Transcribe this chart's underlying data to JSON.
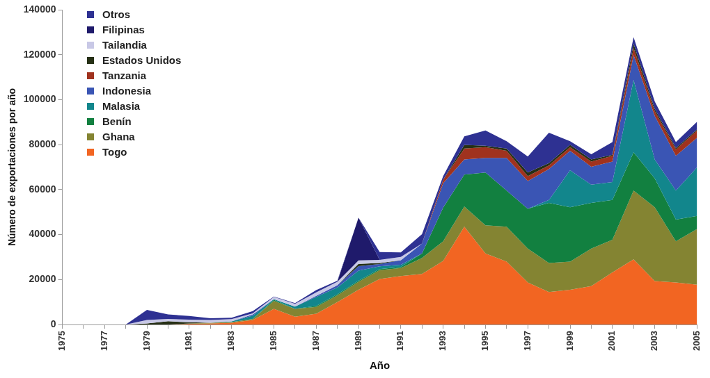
{
  "chart_data": {
    "type": "area",
    "stacked": true,
    "xlabel": "Año",
    "ylabel": "Número de exportaciones por año",
    "x": [
      1975,
      1976,
      1977,
      1978,
      1979,
      1980,
      1981,
      1982,
      1983,
      1984,
      1985,
      1986,
      1987,
      1988,
      1989,
      1990,
      1991,
      1992,
      1993,
      1994,
      1995,
      1996,
      1997,
      1998,
      1999,
      2000,
      2001,
      2002,
      2003,
      2004,
      2005
    ],
    "xlim": [
      1975,
      2005
    ],
    "xticks": [
      1975,
      {
        "value": 1976,
        "label": null
      },
      1977,
      {
        "value": 1978,
        "label": null
      },
      1979,
      {
        "value": 1980,
        "label": null
      },
      1981,
      {
        "value": 1982,
        "label": null
      },
      1983,
      {
        "value": 1984,
        "label": null
      },
      1985,
      {
        "value": 1986,
        "label": null
      },
      1987,
      {
        "value": 1988,
        "label": null
      },
      1989,
      {
        "value": 1990,
        "label": null
      },
      1991,
      {
        "value": 1992,
        "label": null
      },
      1993,
      {
        "value": 1994,
        "label": null
      },
      1995,
      {
        "value": 1996,
        "label": null
      },
      1997,
      {
        "value": 1998,
        "label": null
      },
      1999,
      {
        "value": 2000,
        "label": null
      },
      2001,
      {
        "value": 2002,
        "label": null
      },
      2003,
      {
        "value": 2004,
        "label": null
      },
      2005
    ],
    "ylim": [
      0,
      140000
    ],
    "yticks": [
      0,
      20000,
      40000,
      60000,
      80000,
      100000,
      120000,
      140000
    ],
    "grid": false,
    "legend": "top left",
    "series": [
      {
        "name": "Togo",
        "color": "#f26522",
        "values": [
          0,
          0,
          0,
          0,
          0,
          0,
          300,
          500,
          800,
          2000,
          7000,
          3500,
          4800,
          10000,
          15500,
          20300,
          21600,
          22500,
          28300,
          43500,
          31600,
          28000,
          18700,
          14500,
          15500,
          17100,
          23200,
          29000,
          19300,
          18700,
          17700
        ]
      },
      {
        "name": "Ghana",
        "color": "#848432",
        "values": [
          0,
          0,
          0,
          0,
          0,
          0,
          200,
          300,
          300,
          500,
          3500,
          3500,
          3000,
          3000,
          3500,
          3900,
          3500,
          7100,
          8700,
          9000,
          12500,
          15500,
          15100,
          12900,
          12500,
          16700,
          14500,
          30600,
          32900,
          18300,
          24800
        ]
      },
      {
        "name": "Benín",
        "color": "#128040",
        "values": [
          0,
          0,
          0,
          0,
          0,
          0,
          0,
          0,
          0,
          0,
          500,
          0,
          500,
          500,
          500,
          500,
          500,
          2000,
          15000,
          14200,
          23500,
          16100,
          17700,
          26700,
          24200,
          20300,
          17700,
          17000,
          12800,
          9700,
          5800
        ]
      },
      {
        "name": "Malasia",
        "color": "#12868c",
        "values": [
          0,
          0,
          0,
          0,
          0,
          0,
          0,
          0,
          300,
          1500,
          300,
          1000,
          4000,
          3000,
          4500,
          1200,
          1000,
          0,
          0,
          0,
          0,
          0,
          0,
          1300,
          16400,
          8100,
          8000,
          32200,
          8400,
          12900,
          21600
        ]
      },
      {
        "name": "Indonesia",
        "color": "#3a55b4",
        "values": [
          0,
          0,
          0,
          0,
          0,
          0,
          0,
          0,
          0,
          500,
          0,
          0,
          500,
          1000,
          2000,
          1000,
          2000,
          4400,
          10800,
          6700,
          6500,
          14500,
          12300,
          13800,
          8700,
          8000,
          9100,
          11000,
          19300,
          15400,
          13200
        ]
      },
      {
        "name": "Tanzania",
        "color": "#a0321e",
        "values": [
          0,
          0,
          0,
          0,
          0,
          0,
          0,
          0,
          0,
          0,
          0,
          0,
          0,
          0,
          0,
          0,
          0,
          0,
          1600,
          4900,
          4800,
          3200,
          2200,
          1600,
          1600,
          2300,
          2500,
          3200,
          2300,
          2900,
          3200
        ]
      },
      {
        "name": "Estados Unidos",
        "color": "#263015",
        "values": [
          0,
          0,
          0,
          0,
          500,
          1500,
          500,
          0,
          0,
          0,
          0,
          0,
          0,
          0,
          1000,
          500,
          0,
          0,
          0,
          1600,
          600,
          1000,
          1600,
          1000,
          1000,
          900,
          500,
          1900,
          1000,
          600,
          500
        ]
      },
      {
        "name": "Tailandia",
        "color": "#c8c8e6",
        "values": [
          null,
          null,
          null,
          0,
          1500,
          1000,
          1200,
          1200,
          1000,
          500,
          1000,
          1200,
          1500,
          1500,
          1500,
          1400,
          1500,
          0,
          null,
          null,
          null,
          null,
          null,
          null,
          null,
          null,
          null,
          null,
          null,
          null,
          null
        ]
      },
      {
        "name": "Filipinas",
        "color": "#1f1a6b",
        "values": [
          null,
          null,
          null,
          null,
          null,
          null,
          null,
          null,
          null,
          null,
          null,
          null,
          null,
          0,
          19000,
          0,
          null,
          null,
          null,
          null,
          null,
          null,
          null,
          null,
          null,
          null,
          null,
          null,
          null,
          null,
          null
        ]
      },
      {
        "name": "Otros",
        "color": "#2e3192",
        "values": [
          0,
          0,
          0,
          0,
          4500,
          2000,
          1600,
          800,
          600,
          1000,
          200,
          300,
          1000,
          500,
          0,
          3400,
          2000,
          4200,
          1600,
          3800,
          6800,
          3200,
          7100,
          13500,
          1600,
          2300,
          5600,
          2900,
          3200,
          2600,
          3400
        ]
      }
    ]
  }
}
